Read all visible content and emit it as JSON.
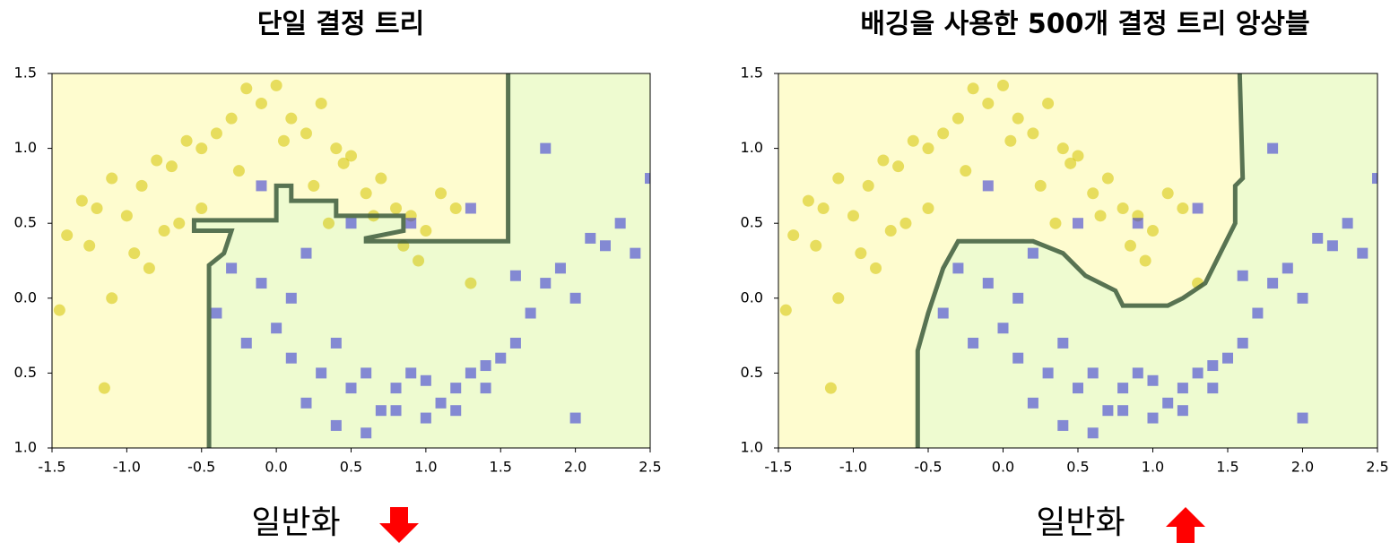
{
  "chart_data": [
    {
      "type": "scatter",
      "title": "단일 결정 트리",
      "caption": "일반화",
      "caption_arrow": "down",
      "xlim": [
        -1.5,
        2.5
      ],
      "ylim": [
        -1,
        1.5
      ],
      "xticks": [
        -1.5,
        {
          "value": -1,
          "label": "-1.0"
        },
        -0.5,
        {
          "value": 0,
          "label": "0.0"
        },
        0.5,
        {
          "value": 1,
          "label": "1.0"
        },
        1.5,
        {
          "value": 2,
          "label": "2.0"
        },
        2.5
      ],
      "yticks": [
        1.5,
        {
          "value": 1,
          "label": "1.0"
        },
        0.5,
        {
          "value": 0,
          "label": "0.0"
        },
        -0.5,
        {
          "value": -1,
          "label": "-1.0"
        }
      ],
      "region_colors": [
        "#fefccf",
        "#eefbd0"
      ],
      "boundary": {
        "x": [
          -0.45,
          -0.45,
          -0.35,
          -0.3,
          -0.55,
          -0.55,
          0.0,
          0.0,
          0.1,
          0.1,
          0.4,
          0.4,
          0.85,
          0.85,
          0.6,
          0.6,
          1.55,
          1.55
        ],
        "y": [
          -1,
          0.22,
          0.3,
          0.45,
          0.45,
          0.52,
          0.52,
          0.75,
          0.75,
          0.65,
          0.65,
          0.55,
          0.55,
          0.45,
          0.4,
          0.38,
          0.38,
          1.5
        ]
      },
      "series": [
        {
          "color": "#d4c300",
          "marker": "circle",
          "x": [
            -1.4,
            -1.3,
            -1.2,
            -1.1,
            -1.0,
            -0.9,
            -0.8,
            -0.7,
            -0.6,
            -0.5,
            -0.4,
            -0.3,
            -0.2,
            -0.1,
            0.0,
            0.1,
            0.2,
            0.3,
            0.4,
            0.5,
            0.6,
            0.7,
            0.8,
            0.9,
            1.0,
            1.1,
            1.2,
            -1.25,
            -0.95,
            -0.75,
            -0.5,
            -0.25,
            0.05,
            0.25,
            0.45,
            0.65,
            0.85,
            -1.45,
            -1.1,
            -0.65,
            0.95,
            1.3,
            -0.85,
            0.35,
            -1.15
          ],
          "values": [
            0.42,
            0.65,
            0.6,
            0.8,
            0.55,
            0.75,
            0.92,
            0.88,
            1.05,
            1.0,
            1.1,
            1.2,
            1.4,
            1.3,
            1.42,
            1.2,
            1.1,
            1.3,
            1.0,
            0.95,
            0.7,
            0.8,
            0.6,
            0.55,
            0.45,
            0.7,
            0.6,
            0.35,
            0.3,
            0.45,
            0.6,
            0.85,
            1.05,
            0.75,
            0.9,
            0.55,
            0.35,
            -0.08,
            0.0,
            0.5,
            0.25,
            0.1,
            0.2,
            0.5,
            -0.6
          ]
        },
        {
          "color": "#2b2bd6",
          "marker": "square",
          "x": [
            -0.4,
            -0.3,
            -0.2,
            -0.1,
            0.0,
            0.1,
            0.2,
            0.3,
            0.4,
            0.5,
            0.6,
            0.7,
            0.8,
            0.9,
            1.0,
            1.1,
            1.2,
            1.3,
            1.4,
            1.5,
            1.6,
            1.7,
            1.8,
            1.9,
            2.0,
            2.1,
            2.2,
            2.3,
            2.4,
            2.5,
            0.2,
            0.4,
            0.6,
            0.8,
            1.0,
            1.2,
            1.4,
            1.6,
            1.8,
            2.0,
            0.5,
            0.9,
            1.3,
            -0.1,
            0.1
          ],
          "values": [
            -0.1,
            0.2,
            -0.3,
            0.1,
            -0.2,
            -0.4,
            0.3,
            -0.5,
            -0.3,
            -0.6,
            -0.5,
            -0.75,
            -0.6,
            -0.5,
            -0.8,
            -0.7,
            -0.6,
            -0.5,
            -0.45,
            -0.4,
            -0.3,
            -0.1,
            0.1,
            0.2,
            0.0,
            0.4,
            0.35,
            0.5,
            0.3,
            0.8,
            -0.7,
            -0.85,
            -0.9,
            -0.75,
            -0.55,
            -0.75,
            -0.6,
            0.15,
            1.0,
            -0.8,
            0.5,
            0.5,
            0.6,
            0.75,
            0.0
          ]
        }
      ]
    },
    {
      "type": "scatter",
      "title": "배깅을 사용한 500개 결정 트리 앙상블",
      "caption": "일반화",
      "caption_arrow": "up",
      "xlim": [
        -1.5,
        2.5
      ],
      "ylim": [
        -1,
        1.5
      ],
      "xticks": [
        -1.5,
        {
          "value": -1,
          "label": "-1.0"
        },
        -0.5,
        {
          "value": 0,
          "label": "0.0"
        },
        0.5,
        {
          "value": 1,
          "label": "1.0"
        },
        1.5,
        {
          "value": 2,
          "label": "2.0"
        },
        2.5
      ],
      "yticks": [
        1.5,
        {
          "value": 1,
          "label": "1.0"
        },
        0.5,
        {
          "value": 0,
          "label": "0.0"
        },
        -0.5,
        {
          "value": -1,
          "label": "-1.0"
        }
      ],
      "region_colors": [
        "#fefccf",
        "#eefbd0"
      ],
      "boundary": {
        "x": [
          -0.57,
          -0.57,
          -0.5,
          -0.4,
          -0.3,
          0.2,
          0.4,
          0.55,
          0.75,
          0.8,
          1.1,
          1.2,
          1.35,
          1.45,
          1.55,
          1.55,
          1.6,
          1.58
        ],
        "y": [
          -1,
          -0.35,
          -0.1,
          0.2,
          0.38,
          0.38,
          0.3,
          0.15,
          0.05,
          -0.05,
          -0.05,
          0.0,
          0.1,
          0.3,
          0.5,
          0.75,
          0.8,
          1.5
        ]
      },
      "series": [
        {
          "color": "#d4c300",
          "marker": "circle",
          "x": [
            -1.4,
            -1.3,
            -1.2,
            -1.1,
            -1.0,
            -0.9,
            -0.8,
            -0.7,
            -0.6,
            -0.5,
            -0.4,
            -0.3,
            -0.2,
            -0.1,
            0.0,
            0.1,
            0.2,
            0.3,
            0.4,
            0.5,
            0.6,
            0.7,
            0.8,
            0.9,
            1.0,
            1.1,
            1.2,
            -1.25,
            -0.95,
            -0.75,
            -0.5,
            -0.25,
            0.05,
            0.25,
            0.45,
            0.65,
            0.85,
            -1.45,
            -1.1,
            -0.65,
            0.95,
            1.3,
            -0.85,
            0.35,
            -1.15
          ],
          "values": [
            0.42,
            0.65,
            0.6,
            0.8,
            0.55,
            0.75,
            0.92,
            0.88,
            1.05,
            1.0,
            1.1,
            1.2,
            1.4,
            1.3,
            1.42,
            1.2,
            1.1,
            1.3,
            1.0,
            0.95,
            0.7,
            0.8,
            0.6,
            0.55,
            0.45,
            0.7,
            0.6,
            0.35,
            0.3,
            0.45,
            0.6,
            0.85,
            1.05,
            0.75,
            0.9,
            0.55,
            0.35,
            -0.08,
            0.0,
            0.5,
            0.25,
            0.1,
            0.2,
            0.5,
            -0.6
          ]
        },
        {
          "color": "#2b2bd6",
          "marker": "square",
          "x": [
            -0.4,
            -0.3,
            -0.2,
            -0.1,
            0.0,
            0.1,
            0.2,
            0.3,
            0.4,
            0.5,
            0.6,
            0.7,
            0.8,
            0.9,
            1.0,
            1.1,
            1.2,
            1.3,
            1.4,
            1.5,
            1.6,
            1.7,
            1.8,
            1.9,
            2.0,
            2.1,
            2.2,
            2.3,
            2.4,
            2.5,
            0.2,
            0.4,
            0.6,
            0.8,
            1.0,
            1.2,
            1.4,
            1.6,
            1.8,
            2.0,
            0.5,
            0.9,
            1.3,
            -0.1,
            0.1
          ],
          "values": [
            -0.1,
            0.2,
            -0.3,
            0.1,
            -0.2,
            -0.4,
            0.3,
            -0.5,
            -0.3,
            -0.6,
            -0.5,
            -0.75,
            -0.6,
            -0.5,
            -0.8,
            -0.7,
            -0.6,
            -0.5,
            -0.45,
            -0.4,
            -0.3,
            -0.1,
            0.1,
            0.2,
            0.0,
            0.4,
            0.35,
            0.5,
            0.3,
            0.8,
            -0.7,
            -0.85,
            -0.9,
            -0.75,
            -0.55,
            -0.75,
            -0.6,
            0.15,
            1.0,
            -0.8,
            0.5,
            0.5,
            0.6,
            0.75,
            0.0
          ]
        }
      ]
    }
  ]
}
